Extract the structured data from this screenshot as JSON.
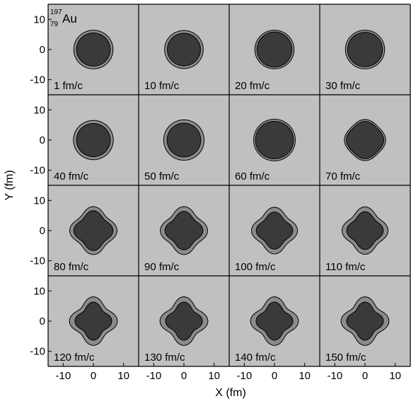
{
  "chart_data": {
    "type": "contour-grid",
    "nucleus": {
      "mass_number": "197",
      "atomic_number": "79",
      "symbol": "Au"
    },
    "xlabel": "X (fm)",
    "ylabel": "Y (fm)",
    "xlim": [
      -15,
      15
    ],
    "ylim": [
      -15,
      15
    ],
    "xticks": [
      -10,
      0,
      10
    ],
    "yticks": [
      -10,
      0,
      10
    ],
    "xtick_labels": [
      "-10",
      "0",
      "10"
    ],
    "ytick_labels": [
      "-10",
      "0",
      "10"
    ],
    "grid": false,
    "colors": {
      "background": "#c0c0c0",
      "outer_contour": "#8c8c8c",
      "inner_contour": "#3a3a3a",
      "border": "#000000"
    },
    "panels": [
      {
        "label": "1 fm/c",
        "time": 1,
        "outer": {
          "rx": 6.5,
          "ry": 6.4,
          "shape": 0.0
        },
        "inner": {
          "rx": 5.6,
          "ry": 5.5,
          "shape": 0.0
        }
      },
      {
        "label": "10 fm/c",
        "time": 10,
        "outer": {
          "rx": 6.4,
          "ry": 6.3,
          "shape": 0.0
        },
        "inner": {
          "rx": 5.5,
          "ry": 5.4,
          "shape": 0.0
        }
      },
      {
        "label": "20 fm/c",
        "time": 20,
        "outer": {
          "rx": 6.5,
          "ry": 6.4,
          "shape": 0.0
        },
        "inner": {
          "rx": 5.8,
          "ry": 5.8,
          "shape": 0.0
        }
      },
      {
        "label": "30 fm/c",
        "time": 30,
        "outer": {
          "rx": 6.5,
          "ry": 6.4,
          "shape": 0.0
        },
        "inner": {
          "rx": 5.8,
          "ry": 5.7,
          "shape": 0.0
        }
      },
      {
        "label": "40 fm/c",
        "time": 40,
        "outer": {
          "rx": 6.6,
          "ry": 6.5,
          "shape": 0.0
        },
        "inner": {
          "rx": 5.6,
          "ry": 5.5,
          "shape": 0.0
        }
      },
      {
        "label": "50 fm/c",
        "time": 50,
        "outer": {
          "rx": 6.7,
          "ry": 6.7,
          "shape": 0.0
        },
        "inner": {
          "rx": 5.6,
          "ry": 5.6,
          "shape": 0.0
        }
      },
      {
        "label": "60 fm/c",
        "time": 60,
        "outer": {
          "rx": 6.9,
          "ry": 6.9,
          "shape": 0.0
        },
        "inner": {
          "rx": 6.3,
          "ry": 6.2,
          "shape": 0.0
        }
      },
      {
        "label": "70 fm/c",
        "time": 70,
        "outer": {
          "rx": 6.5,
          "ry": 6.5,
          "shape": 0.05
        },
        "inner": {
          "rx": 5.9,
          "ry": 5.9,
          "shape": 0.05
        }
      },
      {
        "label": "80 fm/c",
        "time": 80,
        "outer": {
          "rx": 7.0,
          "ry": 7.1,
          "shape": 0.12
        },
        "inner": {
          "rx": 5.8,
          "ry": 5.9,
          "shape": 0.12
        }
      },
      {
        "label": "90 fm/c",
        "time": 90,
        "outer": {
          "rx": 7.0,
          "ry": 7.1,
          "shape": 0.12
        },
        "inner": {
          "rx": 5.6,
          "ry": 5.7,
          "shape": 0.12
        }
      },
      {
        "label": "100 fm/c",
        "time": 100,
        "outer": {
          "rx": 6.8,
          "ry": 6.9,
          "shape": 0.12
        },
        "inner": {
          "rx": 5.4,
          "ry": 5.5,
          "shape": 0.12
        }
      },
      {
        "label": "110 fm/c",
        "time": 110,
        "outer": {
          "rx": 6.8,
          "ry": 7.0,
          "shape": 0.12
        },
        "inner": {
          "rx": 5.4,
          "ry": 5.6,
          "shape": 0.12
        }
      },
      {
        "label": "120 fm/c",
        "time": 120,
        "outer": {
          "rx": 6.9,
          "ry": 7.0,
          "shape": 0.15
        },
        "inner": {
          "rx": 5.3,
          "ry": 5.5,
          "shape": 0.15
        }
      },
      {
        "label": "130 fm/c",
        "time": 130,
        "outer": {
          "rx": 6.9,
          "ry": 7.0,
          "shape": 0.15
        },
        "inner": {
          "rx": 5.3,
          "ry": 5.5,
          "shape": 0.15
        }
      },
      {
        "label": "140 fm/c",
        "time": 140,
        "outer": {
          "rx": 6.9,
          "ry": 7.0,
          "shape": 0.15
        },
        "inner": {
          "rx": 5.3,
          "ry": 5.5,
          "shape": 0.15
        }
      },
      {
        "label": "150 fm/c",
        "time": 150,
        "outer": {
          "rx": 6.9,
          "ry": 7.0,
          "shape": 0.15
        },
        "inner": {
          "rx": 5.3,
          "ry": 5.5,
          "shape": 0.15
        }
      }
    ]
  }
}
